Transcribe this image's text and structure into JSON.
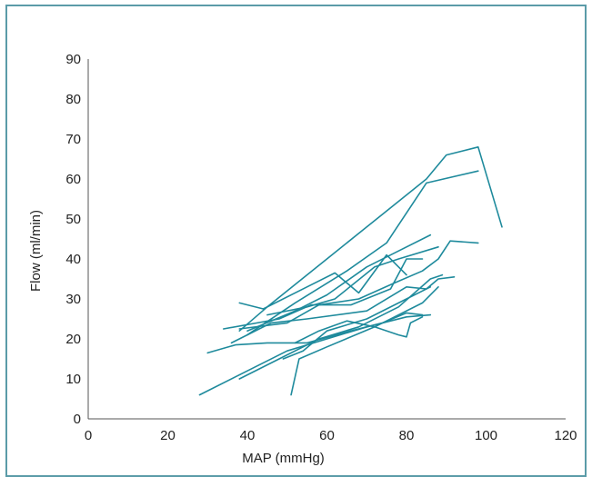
{
  "chart_data": {
    "type": "line",
    "title": "",
    "xlabel": "MAP (mmHg)",
    "ylabel": "Flow (ml/min)",
    "xlim": [
      0,
      120
    ],
    "ylim": [
      0,
      90
    ],
    "xticks": [
      0,
      20,
      40,
      60,
      80,
      100,
      120
    ],
    "yticks": [
      0,
      10,
      20,
      30,
      40,
      50,
      60,
      70,
      80,
      90
    ],
    "grid": false,
    "legend": "none",
    "line_color": "#1e8a9c",
    "series": [
      {
        "x": [
          38,
          45,
          60,
          75,
          85,
          90,
          98,
          104
        ],
        "y": [
          22,
          28,
          40,
          52,
          60,
          66,
          68,
          48
        ]
      },
      {
        "x": [
          40,
          52,
          65,
          75,
          85,
          98
        ],
        "y": [
          21,
          29,
          37,
          44,
          59,
          62
        ]
      },
      {
        "x": [
          38,
          44
        ],
        "y": [
          29,
          27.5
        ]
      },
      {
        "x": [
          44,
          55,
          62,
          68,
          75,
          80
        ],
        "y": [
          27.5,
          33,
          36.5,
          31.5,
          41,
          36
        ]
      },
      {
        "x": [
          40,
          52,
          60,
          70,
          78,
          86
        ],
        "y": [
          22,
          27,
          31,
          38,
          42,
          46
        ]
      },
      {
        "x": [
          45,
          55,
          62,
          72,
          78,
          88
        ],
        "y": [
          26,
          28,
          30,
          38,
          40,
          43
        ]
      },
      {
        "x": [
          34,
          48,
          56,
          66,
          76,
          80,
          84
        ],
        "y": [
          22.5,
          25,
          28.5,
          28.5,
          32.5,
          40,
          40
        ]
      },
      {
        "x": [
          38,
          50,
          58,
          68,
          77,
          84,
          88,
          91,
          98
        ],
        "y": [
          22.5,
          24,
          28.5,
          30,
          34,
          37,
          40,
          44.5,
          44
        ]
      },
      {
        "x": [
          36,
          46,
          55,
          70,
          80,
          85,
          88,
          92
        ],
        "y": [
          19,
          24,
          25,
          27,
          33,
          32.5,
          35,
          35.5
        ]
      },
      {
        "x": [
          30,
          37,
          45,
          55,
          66,
          74,
          80,
          84
        ],
        "y": [
          16.5,
          18.5,
          19,
          19,
          22,
          24,
          26.5,
          26
        ]
      },
      {
        "x": [
          28,
          40,
          50,
          60,
          70,
          80,
          86
        ],
        "y": [
          6,
          12,
          17,
          20,
          23,
          25.5,
          26
        ]
      },
      {
        "x": [
          52,
          58,
          65,
          72,
          78,
          80,
          81,
          84
        ],
        "y": [
          19,
          22,
          24.5,
          23,
          21,
          20.5,
          24,
          25.5
        ]
      },
      {
        "x": [
          38,
          48,
          58,
          68,
          78,
          86,
          89
        ],
        "y": [
          10,
          15,
          20,
          23,
          28,
          35,
          36
        ]
      },
      {
        "x": [
          49,
          54,
          60,
          70,
          80,
          86
        ],
        "y": [
          15,
          17,
          22,
          25,
          30,
          33
        ]
      },
      {
        "x": [
          51,
          53,
          60,
          72,
          84,
          88
        ],
        "y": [
          6,
          15,
          18,
          23,
          29,
          33
        ]
      }
    ]
  }
}
